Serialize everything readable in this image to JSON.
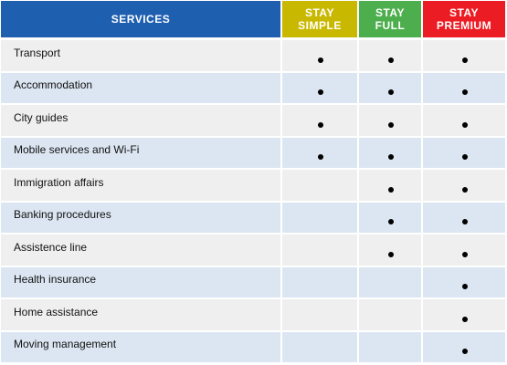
{
  "header": {
    "services": "SERVICES",
    "plans": [
      {
        "label": "STAY SIMPLE",
        "color": "#c9b800"
      },
      {
        "label": "STAY FULL",
        "color": "#4cae4c"
      },
      {
        "label": "STAY PREMIUM",
        "color": "#ec1c24"
      }
    ],
    "services_color": "#1f5fb0"
  },
  "rows": [
    {
      "service": "Transport",
      "included": [
        true,
        true,
        true
      ]
    },
    {
      "service": "Accommodation",
      "included": [
        true,
        true,
        true
      ]
    },
    {
      "service": "City guides",
      "included": [
        true,
        true,
        true
      ]
    },
    {
      "service": "Mobile services and Wi-Fi",
      "included": [
        true,
        true,
        true
      ]
    },
    {
      "service": "Immigration affairs",
      "included": [
        false,
        true,
        true
      ]
    },
    {
      "service": "Banking procedures",
      "included": [
        false,
        true,
        true
      ]
    },
    {
      "service": "Assistence line",
      "included": [
        false,
        true,
        true
      ]
    },
    {
      "service": "Health insurance",
      "included": [
        false,
        false,
        true
      ]
    },
    {
      "service": "Home assistance",
      "included": [
        false,
        false,
        true
      ]
    },
    {
      "service": "Moving management",
      "included": [
        false,
        false,
        true
      ]
    }
  ]
}
